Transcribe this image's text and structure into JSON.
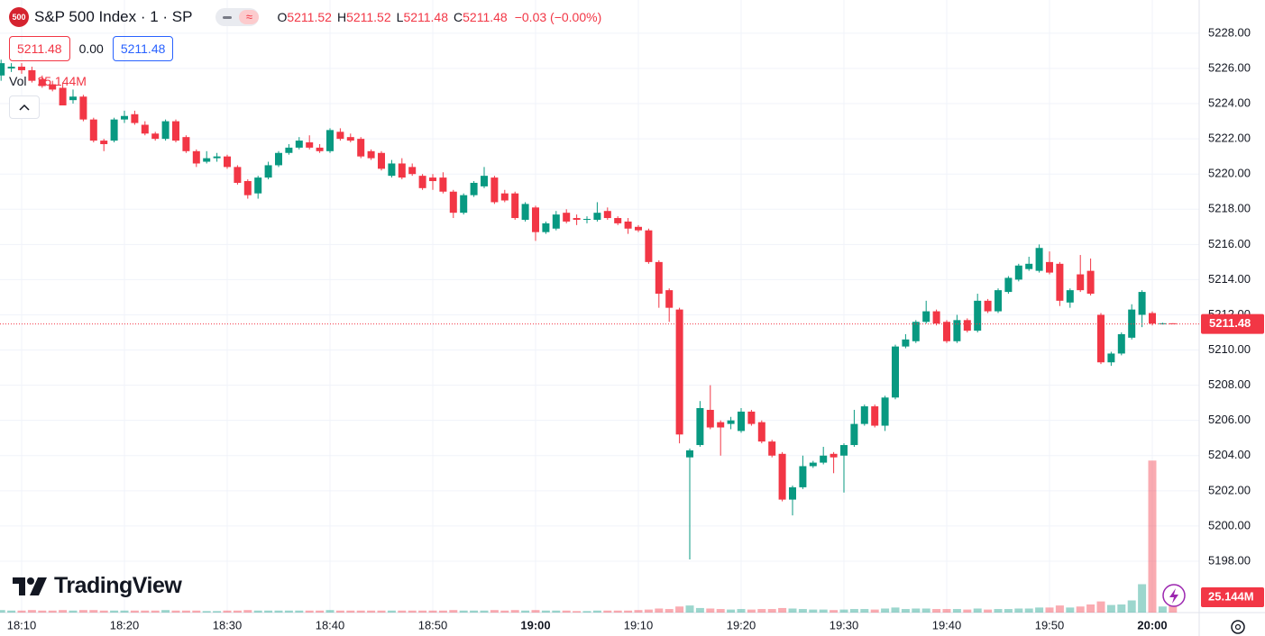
{
  "header": {
    "logo_text": "500",
    "title": "S&P 500 Index · 1 · SP",
    "legend": [
      {
        "key": "O",
        "value": "5211.52"
      },
      {
        "key": "H",
        "value": "5211.52"
      },
      {
        "key": "L",
        "value": "5211.48"
      },
      {
        "key": "C",
        "value": "5211.48"
      }
    ],
    "change": "−0.03 (−0.00%)",
    "bid": "5211.48",
    "spread": "0.00",
    "ask": "5211.48"
  },
  "brand": "TradingView",
  "chart_data": {
    "type": "candlestick",
    "x": [
      "18:08",
      "18:09",
      "18:10",
      "18:11",
      "18:12",
      "18:13",
      "18:14",
      "18:15",
      "18:16",
      "18:17",
      "18:18",
      "18:19",
      "18:20",
      "18:21",
      "18:22",
      "18:23",
      "18:24",
      "18:25",
      "18:26",
      "18:27",
      "18:28",
      "18:29",
      "18:30",
      "18:31",
      "18:32",
      "18:33",
      "18:34",
      "18:35",
      "18:36",
      "18:37",
      "18:38",
      "18:39",
      "18:40",
      "18:41",
      "18:42",
      "18:43",
      "18:44",
      "18:45",
      "18:46",
      "18:47",
      "18:48",
      "18:49",
      "18:50",
      "18:51",
      "18:52",
      "18:53",
      "18:54",
      "18:55",
      "18:56",
      "18:57",
      "18:58",
      "18:59",
      "19:00",
      "19:01",
      "19:02",
      "19:03",
      "19:04",
      "19:05",
      "19:06",
      "19:07",
      "19:08",
      "19:09",
      "19:10",
      "19:11",
      "19:12",
      "19:13",
      "19:14",
      "19:15",
      "19:16",
      "19:17",
      "19:18",
      "19:19",
      "19:20",
      "19:21",
      "19:22",
      "19:23",
      "19:24",
      "19:25",
      "19:26",
      "19:27",
      "19:28",
      "19:29",
      "19:30",
      "19:31",
      "19:32",
      "19:33",
      "19:34",
      "19:35",
      "19:36",
      "19:37",
      "19:38",
      "19:39",
      "19:40",
      "19:41",
      "19:42",
      "19:43",
      "19:44",
      "19:45",
      "19:46",
      "19:47",
      "19:48",
      "19:49",
      "19:50",
      "19:51",
      "19:52",
      "19:53",
      "19:54",
      "19:55",
      "19:56",
      "19:57",
      "19:58",
      "19:59",
      "20:00",
      "20:01",
      "20:02"
    ],
    "open": [
      5225.6,
      5226.0,
      5226.1,
      5225.9,
      5225.4,
      5225.1,
      5224.9,
      5224.2,
      5224.4,
      5223.1,
      5221.9,
      5221.9,
      5223.1,
      5223.4,
      5222.8,
      5222.3,
      5222.0,
      5223.0,
      5222.1,
      5221.3,
      5220.7,
      5220.9,
      5221.0,
      5220.4,
      5219.6,
      5218.9,
      5219.8,
      5220.5,
      5221.2,
      5221.5,
      5221.8,
      5221.5,
      5221.3,
      5222.4,
      5222.1,
      5222.0,
      5221.3,
      5221.2,
      5219.9,
      5220.6,
      5220.4,
      5219.9,
      5219.8,
      5219.8,
      5219.0,
      5217.8,
      5218.8,
      5219.3,
      5219.8,
      5218.9,
      5218.9,
      5217.4,
      5218.1,
      5216.7,
      5216.9,
      5217.8,
      5217.5,
      5217.4,
      5217.4,
      5217.9,
      5217.5,
      5217.3,
      5217.0,
      5216.8,
      5215.0,
      5213.4,
      5212.3,
      5203.9,
      5204.6,
      5206.6,
      5205.9,
      5205.8,
      5205.4,
      5206.5,
      5205.9,
      5204.8,
      5204.1,
      5201.5,
      5202.2,
      5203.4,
      5203.6,
      5204.1,
      5204.0,
      5204.6,
      5205.8,
      5206.8,
      5205.7,
      5207.3,
      5210.2,
      5210.5,
      5211.6,
      5212.2,
      5211.6,
      5210.5,
      5211.7,
      5211.1,
      5212.8,
      5212.2,
      5213.3,
      5214.0,
      5214.6,
      5214.5,
      5215.0,
      5214.9,
      5212.7,
      5214.3,
      5214.5,
      5212.0,
      5209.3,
      5209.8,
      5210.7,
      5212.0,
      5212.1,
      5211.5,
      5211.52
    ],
    "high": [
      5226.5,
      5226.3,
      5226.3,
      5226.1,
      5225.6,
      5225.3,
      5225.2,
      5224.8,
      5224.5,
      5223.2,
      5222.0,
      5223.2,
      5223.6,
      5223.6,
      5223.0,
      5222.4,
      5223.1,
      5223.1,
      5222.2,
      5221.4,
      5221.3,
      5221.2,
      5221.1,
      5220.5,
      5219.7,
      5219.9,
      5220.7,
      5221.3,
      5221.7,
      5222.1,
      5222.2,
      5221.7,
      5222.6,
      5222.6,
      5222.3,
      5222.1,
      5221.4,
      5221.3,
      5220.8,
      5220.9,
      5220.6,
      5220.0,
      5220.0,
      5220.1,
      5219.1,
      5218.9,
      5219.6,
      5220.4,
      5219.9,
      5219.1,
      5219.0,
      5218.4,
      5218.2,
      5217.3,
      5217.9,
      5218.0,
      5217.7,
      5217.6,
      5218.4,
      5218.1,
      5217.6,
      5217.5,
      5217.1,
      5216.9,
      5215.1,
      5213.5,
      5212.4,
      5204.4,
      5207.1,
      5208.0,
      5206.0,
      5206.2,
      5206.7,
      5206.6,
      5206.0,
      5204.9,
      5204.2,
      5202.3,
      5204.0,
      5203.7,
      5204.5,
      5204.2,
      5204.7,
      5206.6,
      5206.9,
      5206.9,
      5207.4,
      5210.3,
      5210.9,
      5211.7,
      5212.8,
      5212.3,
      5211.7,
      5212.0,
      5211.8,
      5213.2,
      5212.9,
      5213.5,
      5214.2,
      5214.9,
      5215.3,
      5216.0,
      5215.6,
      5215.0,
      5213.5,
      5215.4,
      5215.2,
      5212.1,
      5209.9,
      5211.0,
      5212.6,
      5213.4,
      5212.2,
      5211.55,
      5211.52
    ],
    "low": [
      5225.3,
      5225.8,
      5225.7,
      5225.2,
      5224.9,
      5224.7,
      5223.9,
      5224.0,
      5223.0,
      5221.8,
      5221.3,
      5221.8,
      5222.9,
      5222.8,
      5222.2,
      5221.9,
      5221.9,
      5221.8,
      5221.2,
      5220.4,
      5220.6,
      5220.7,
      5220.3,
      5219.4,
      5218.6,
      5218.6,
      5219.7,
      5220.4,
      5221.1,
      5221.4,
      5221.4,
      5221.2,
      5221.2,
      5221.9,
      5221.8,
      5220.9,
      5220.8,
      5220.2,
      5219.8,
      5219.7,
      5219.9,
      5219.1,
      5219.1,
      5218.9,
      5217.5,
      5217.7,
      5218.7,
      5219.2,
      5218.3,
      5218.4,
      5217.4,
      5217.3,
      5216.2,
      5216.6,
      5216.8,
      5217.2,
      5217.1,
      5217.2,
      5217.3,
      5217.4,
      5217.1,
      5216.6,
      5216.7,
      5214.9,
      5212.4,
      5211.6,
      5204.7,
      5198.1,
      5204.5,
      5205.5,
      5204.0,
      5205.5,
      5205.3,
      5205.7,
      5204.7,
      5203.9,
      5201.4,
      5200.6,
      5202.1,
      5203.3,
      5203.5,
      5203.0,
      5201.9,
      5204.5,
      5205.7,
      5205.6,
      5205.4,
      5207.2,
      5210.1,
      5210.4,
      5211.5,
      5211.4,
      5210.4,
      5210.4,
      5211.0,
      5211.0,
      5212.1,
      5212.1,
      5213.2,
      5213.9,
      5214.5,
      5214.4,
      5214.3,
      5212.5,
      5212.4,
      5213.3,
      5213.1,
      5209.2,
      5209.1,
      5209.7,
      5210.6,
      5211.3,
      5211.4,
      5211.45,
      5211.48
    ],
    "close": [
      5226.3,
      5226.1,
      5225.9,
      5225.3,
      5225.0,
      5224.8,
      5223.9,
      5224.4,
      5223.1,
      5221.9,
      5221.7,
      5223.1,
      5223.3,
      5222.9,
      5222.3,
      5222.0,
      5223.0,
      5221.9,
      5221.3,
      5220.6,
      5220.9,
      5221.0,
      5220.4,
      5219.5,
      5218.8,
      5219.8,
      5220.5,
      5221.2,
      5221.5,
      5221.9,
      5221.5,
      5221.3,
      5222.5,
      5222.0,
      5221.9,
      5221.0,
      5220.9,
      5220.3,
      5220.6,
      5219.8,
      5220.0,
      5219.2,
      5219.6,
      5219.0,
      5217.8,
      5218.8,
      5219.5,
      5219.9,
      5218.4,
      5218.5,
      5217.5,
      5218.3,
      5216.7,
      5217.2,
      5217.7,
      5217.3,
      5217.4,
      5217.45,
      5217.8,
      5217.5,
      5217.2,
      5216.9,
      5216.8,
      5215.0,
      5213.2,
      5212.4,
      5205.2,
      5204.3,
      5206.7,
      5205.6,
      5205.6,
      5206.0,
      5206.5,
      5205.8,
      5204.8,
      5204.0,
      5201.5,
      5202.2,
      5203.4,
      5203.6,
      5204.0,
      5203.9,
      5204.6,
      5205.8,
      5206.8,
      5205.7,
      5207.3,
      5210.2,
      5210.6,
      5211.6,
      5212.2,
      5211.5,
      5210.5,
      5211.7,
      5211.1,
      5212.8,
      5212.2,
      5213.4,
      5214.1,
      5214.8,
      5214.9,
      5215.8,
      5214.4,
      5212.8,
      5213.4,
      5213.4,
      5213.2,
      5209.3,
      5209.8,
      5210.9,
      5212.3,
      5213.3,
      5211.5,
      5211.52,
      5211.48
    ],
    "volume": {
      "name": "Vol",
      "values": [
        5,
        4,
        4,
        5,
        4,
        4,
        5,
        4,
        5,
        5,
        4,
        4,
        4,
        4,
        4,
        4,
        5,
        4,
        4,
        4,
        3,
        3,
        4,
        4,
        5,
        4,
        4,
        4,
        4,
        4,
        4,
        4,
        5,
        4,
        4,
        4,
        4,
        4,
        4,
        4,
        4,
        4,
        4,
        4,
        5,
        4,
        4,
        4,
        5,
        4,
        5,
        4,
        5,
        4,
        4,
        4,
        3,
        3,
        4,
        4,
        4,
        4,
        5,
        6,
        8,
        7,
        12,
        14,
        9,
        8,
        7,
        6,
        7,
        6,
        7,
        7,
        9,
        8,
        7,
        6,
        6,
        5,
        6,
        7,
        7,
        6,
        8,
        10,
        7,
        8,
        8,
        7,
        7,
        7,
        6,
        8,
        6,
        7,
        7,
        8,
        8,
        10,
        10,
        14,
        10,
        12,
        16,
        22,
        15,
        16,
        24,
        56,
        300,
        12,
        25.144
      ],
      "last_label": "25.144M",
      "ylim": [
        0,
        400
      ]
    },
    "last_price": 5211.48,
    "ylim": [
      5195.08,
      5229.89
    ],
    "yticks": [
      {
        "value": 5198,
        "label": "5198.00"
      },
      {
        "value": 5200,
        "label": "5200.00"
      },
      {
        "value": 5202,
        "label": "5202.00"
      },
      {
        "value": 5204,
        "label": "5204.00"
      },
      {
        "value": 5206,
        "label": "5206.00"
      },
      {
        "value": 5208,
        "label": "5208.00"
      },
      {
        "value": 5210,
        "label": "5210.00"
      },
      {
        "value": 5212,
        "label": "5212.00"
      },
      {
        "value": 5214,
        "label": "5214.00"
      },
      {
        "value": 5216,
        "label": "5216.00"
      },
      {
        "value": 5218,
        "label": "5218.00"
      },
      {
        "value": 5220,
        "label": "5220.00"
      },
      {
        "value": 5222,
        "label": "5222.00"
      },
      {
        "value": 5224,
        "label": "5224.00"
      },
      {
        "value": 5226,
        "label": "5226.00"
      },
      {
        "value": 5228,
        "label": "5228.00"
      }
    ],
    "xticks": [
      "18:10",
      "18:20",
      "18:30",
      "18:40",
      "18:50",
      "19:00",
      "19:10",
      "19:20",
      "19:30",
      "19:40",
      "19:50",
      "20:00"
    ],
    "grid": true,
    "up_color": "#089981",
    "down_color": "#f23645",
    "volume_up_color": "rgba(8,153,129,0.4)",
    "volume_down_color": "rgba(242,54,69,0.42)"
  }
}
